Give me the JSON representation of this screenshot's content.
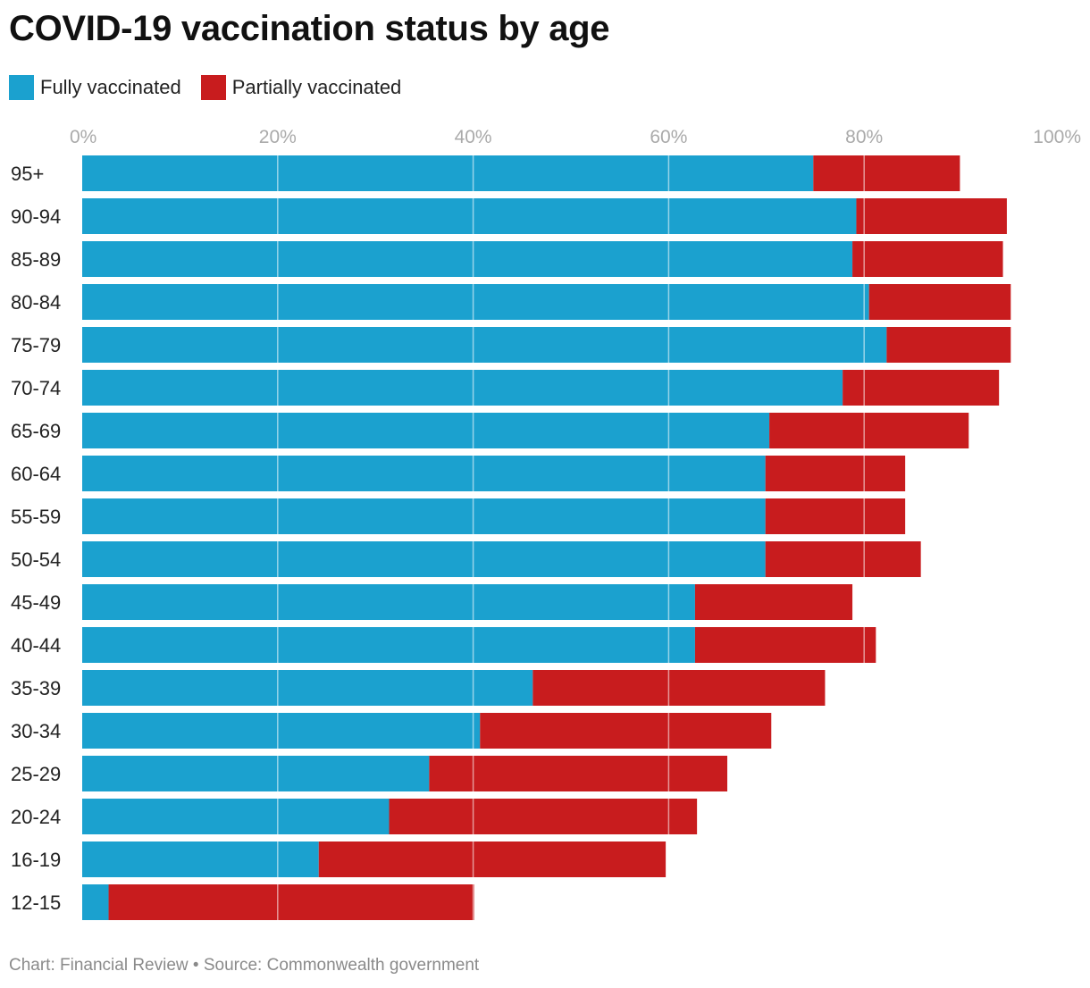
{
  "title": "COVID-19 vaccination status by age",
  "legend": {
    "items": [
      {
        "label": "Fully vaccinated",
        "color": "#1ba1cf"
      },
      {
        "label": "Partially vaccinated",
        "color": "#c81c1e"
      }
    ]
  },
  "footer": {
    "text": "Chart: Financial Review • Source: Commonwealth government"
  },
  "chart_data": {
    "type": "bar",
    "orientation": "horizontal",
    "stacked": true,
    "title": "COVID-19 vaccination status by age",
    "xlabel": "",
    "ylabel": "",
    "xlim": [
      0,
      100
    ],
    "x_ticks": [
      "0%",
      "20%",
      "40%",
      "60%",
      "80%",
      "100%"
    ],
    "grid": true,
    "legend_position": "top-left",
    "categories": [
      "95+",
      "90-94",
      "85-89",
      "80-84",
      "75-79",
      "70-74",
      "65-69",
      "60-64",
      "55-59",
      "50-54",
      "45-49",
      "40-44",
      "35-39",
      "30-34",
      "25-29",
      "20-24",
      "16-19",
      "12-15"
    ],
    "series": [
      {
        "name": "Fully vaccinated",
        "color": "#1ba1cf",
        "values": [
          74.8,
          79.2,
          78.8,
          80.5,
          82.3,
          77.8,
          70.3,
          69.9,
          69.9,
          69.9,
          62.7,
          62.7,
          46.1,
          40.7,
          35.5,
          31.4,
          24.2,
          2.7
        ]
      },
      {
        "name": "Partially vaccinated",
        "color": "#c81c1e",
        "values": [
          15.0,
          15.4,
          15.4,
          14.5,
          12.7,
          16.0,
          20.4,
          14.3,
          14.3,
          15.9,
          16.1,
          18.5,
          29.9,
          29.8,
          30.5,
          31.5,
          35.5,
          37.4
        ]
      }
    ]
  }
}
